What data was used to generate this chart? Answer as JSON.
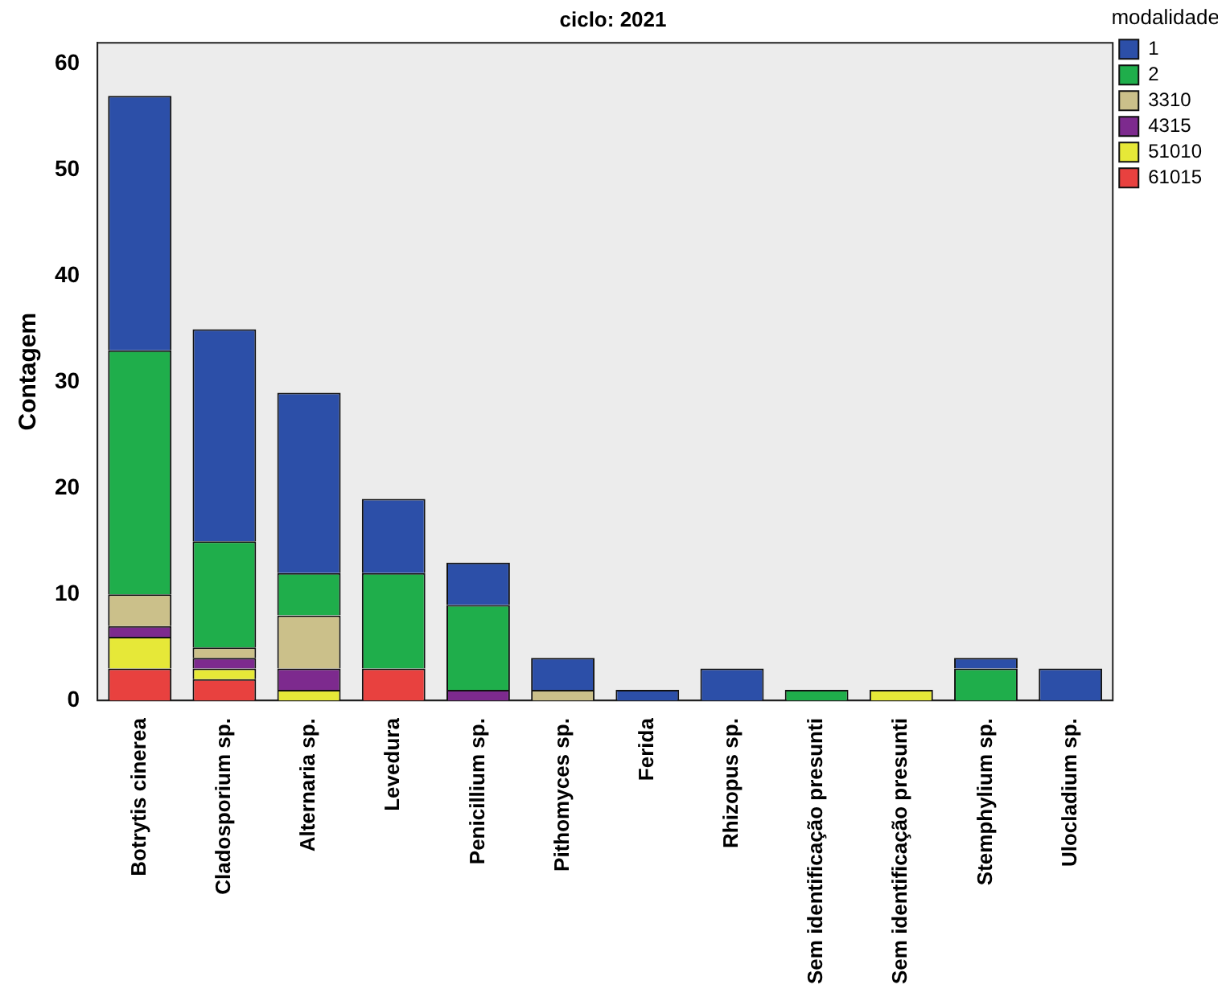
{
  "chart_data": {
    "type": "bar",
    "title": "ciclo: 2021",
    "ylabel": "Contagem",
    "legend_title": "modalidade",
    "stacked": true,
    "grid": false,
    "legend": "top right",
    "categories": [
      "Botrytis cinerea",
      "Cladosporium sp.",
      "Alternaria sp.",
      "Levedura",
      "Penicillium sp.",
      "Pithomyces sp.",
      "Ferida",
      "Rhizopus sp.",
      "Sem identificação presunti",
      "Sem identificação presunti",
      "Stemphylium sp.",
      "Ulocladium sp."
    ],
    "ylim": [
      0,
      62
    ],
    "yticks": [
      0,
      10,
      20,
      30,
      40,
      50,
      60
    ],
    "series": [
      {
        "name": "61015",
        "color": "#e8413f",
        "values": [
          3,
          2,
          0,
          3,
          0,
          0,
          0,
          0,
          0,
          0,
          0,
          0
        ]
      },
      {
        "name": "51010",
        "color": "#e6e838",
        "values": [
          3,
          1,
          1,
          0,
          0,
          0,
          0,
          0,
          0,
          1,
          0,
          0
        ]
      },
      {
        "name": "4315",
        "color": "#7d2a8e",
        "values": [
          1,
          1,
          2,
          0,
          1,
          0,
          0,
          0,
          0,
          0,
          0,
          0
        ]
      },
      {
        "name": "3310",
        "color": "#cbc08a",
        "values": [
          3,
          1,
          5,
          0,
          0,
          1,
          0,
          0,
          0,
          0,
          0,
          0
        ]
      },
      {
        "name": "2",
        "color": "#1fae4b",
        "values": [
          23,
          10,
          4,
          9,
          8,
          0,
          0,
          0,
          1,
          0,
          3,
          0
        ]
      },
      {
        "name": "1",
        "color": "#2c4fa8",
        "values": [
          24,
          20,
          17,
          7,
          4,
          3,
          1,
          3,
          0,
          0,
          1,
          3
        ]
      }
    ]
  }
}
